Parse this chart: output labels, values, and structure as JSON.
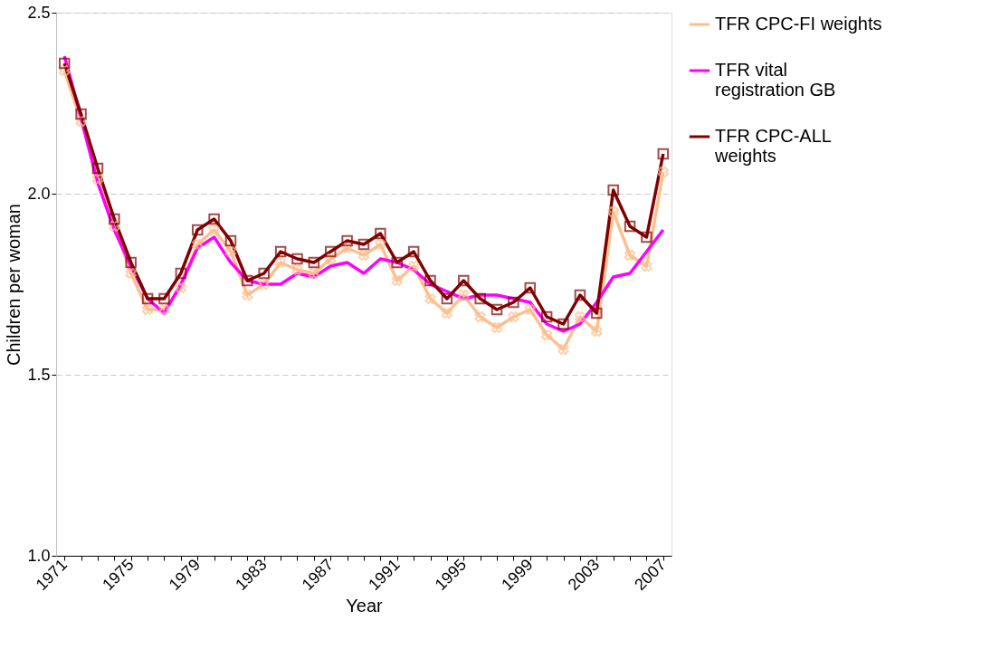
{
  "chart_data": {
    "type": "line",
    "xlabel": "Year",
    "ylabel": "Children per woman",
    "categories": [
      "1971",
      null,
      null,
      null,
      "1975",
      null,
      null,
      null,
      "1979",
      null,
      null,
      null,
      "1983",
      null,
      null,
      null,
      "1987",
      null,
      null,
      null,
      "1991",
      null,
      null,
      null,
      "1995",
      null,
      null,
      null,
      "1999",
      null,
      null,
      null,
      "2003",
      null,
      null,
      null,
      "2007"
    ],
    "series": [
      {
        "name": "TFR CPC-FI weights",
        "color": "#fcc090",
        "marker": "cross",
        "values": [
          2.34,
          2.2,
          2.04,
          1.91,
          1.78,
          1.68,
          1.68,
          1.74,
          1.86,
          1.9,
          1.84,
          1.72,
          1.75,
          1.81,
          1.79,
          1.78,
          1.82,
          1.85,
          1.83,
          1.86,
          1.76,
          1.8,
          1.71,
          1.67,
          1.72,
          1.66,
          1.63,
          1.66,
          1.68,
          1.61,
          1.57,
          1.66,
          1.62,
          1.95,
          1.83,
          1.8,
          2.06
        ]
      },
      {
        "name": "TFR vital registration GB",
        "color": "#ff00ff",
        "marker": "none",
        "values": [
          2.38,
          2.21,
          2.03,
          1.9,
          1.8,
          1.71,
          1.67,
          1.75,
          1.85,
          1.88,
          1.81,
          1.76,
          1.75,
          1.75,
          1.78,
          1.77,
          1.8,
          1.81,
          1.78,
          1.82,
          1.81,
          1.79,
          1.75,
          1.73,
          1.71,
          1.72,
          1.72,
          1.71,
          1.7,
          1.64,
          1.62,
          1.64,
          1.7,
          1.77,
          1.78,
          1.84,
          1.9
        ]
      },
      {
        "name": "TFR CPC-ALL weights",
        "color": "#800000",
        "marker": "square",
        "values": [
          2.36,
          2.22,
          2.07,
          1.93,
          1.81,
          1.71,
          1.71,
          1.78,
          1.9,
          1.93,
          1.87,
          1.76,
          1.78,
          1.84,
          1.82,
          1.81,
          1.84,
          1.87,
          1.86,
          1.89,
          1.81,
          1.84,
          1.76,
          1.71,
          1.76,
          1.71,
          1.68,
          1.7,
          1.74,
          1.66,
          1.64,
          1.72,
          1.67,
          2.01,
          1.91,
          1.88,
          2.11
        ]
      }
    ],
    "ylim": [
      1.0,
      2.5
    ],
    "yticks": [
      {
        "value": 1.0,
        "label": "1.0"
      },
      1.5,
      {
        "value": 2.0,
        "label": "2.0"
      },
      2.5
    ],
    "grid": "y",
    "legend": "right"
  }
}
